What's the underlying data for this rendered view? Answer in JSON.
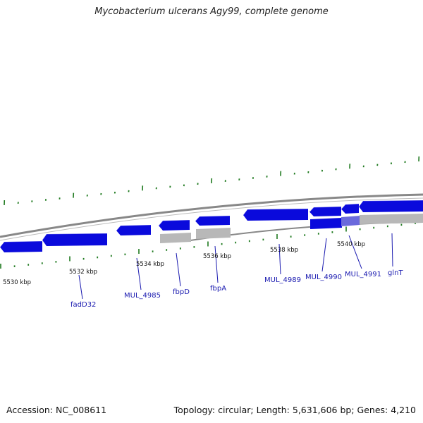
{
  "title": "Mycobacterium ulcerans Agy99, complete genome",
  "footer": {
    "accession": "Accession: NC_008611",
    "topology": "Topology: circular; Length: 5,631,606 bp; Genes: 4,210"
  },
  "colors": {
    "forward_gene": "#0a0adc",
    "reverse_gene": "#0a0adc",
    "pseudo_gene": "#b8b8b8",
    "backbone": "#888888",
    "tick": "#1f7a1f",
    "label": "#1a1ab0"
  },
  "scale_labels": [
    "5530 kbp",
    "5532 kbp",
    "5534 kbp",
    "5536 kbp",
    "5538 kbp",
    "5540 kbp"
  ],
  "gene_labels": [
    "fadD32",
    "MUL_4985",
    "fbpD",
    "fbpA",
    "MUL_4989",
    "MUL_4990",
    "MUL_4991",
    "glnT"
  ]
}
